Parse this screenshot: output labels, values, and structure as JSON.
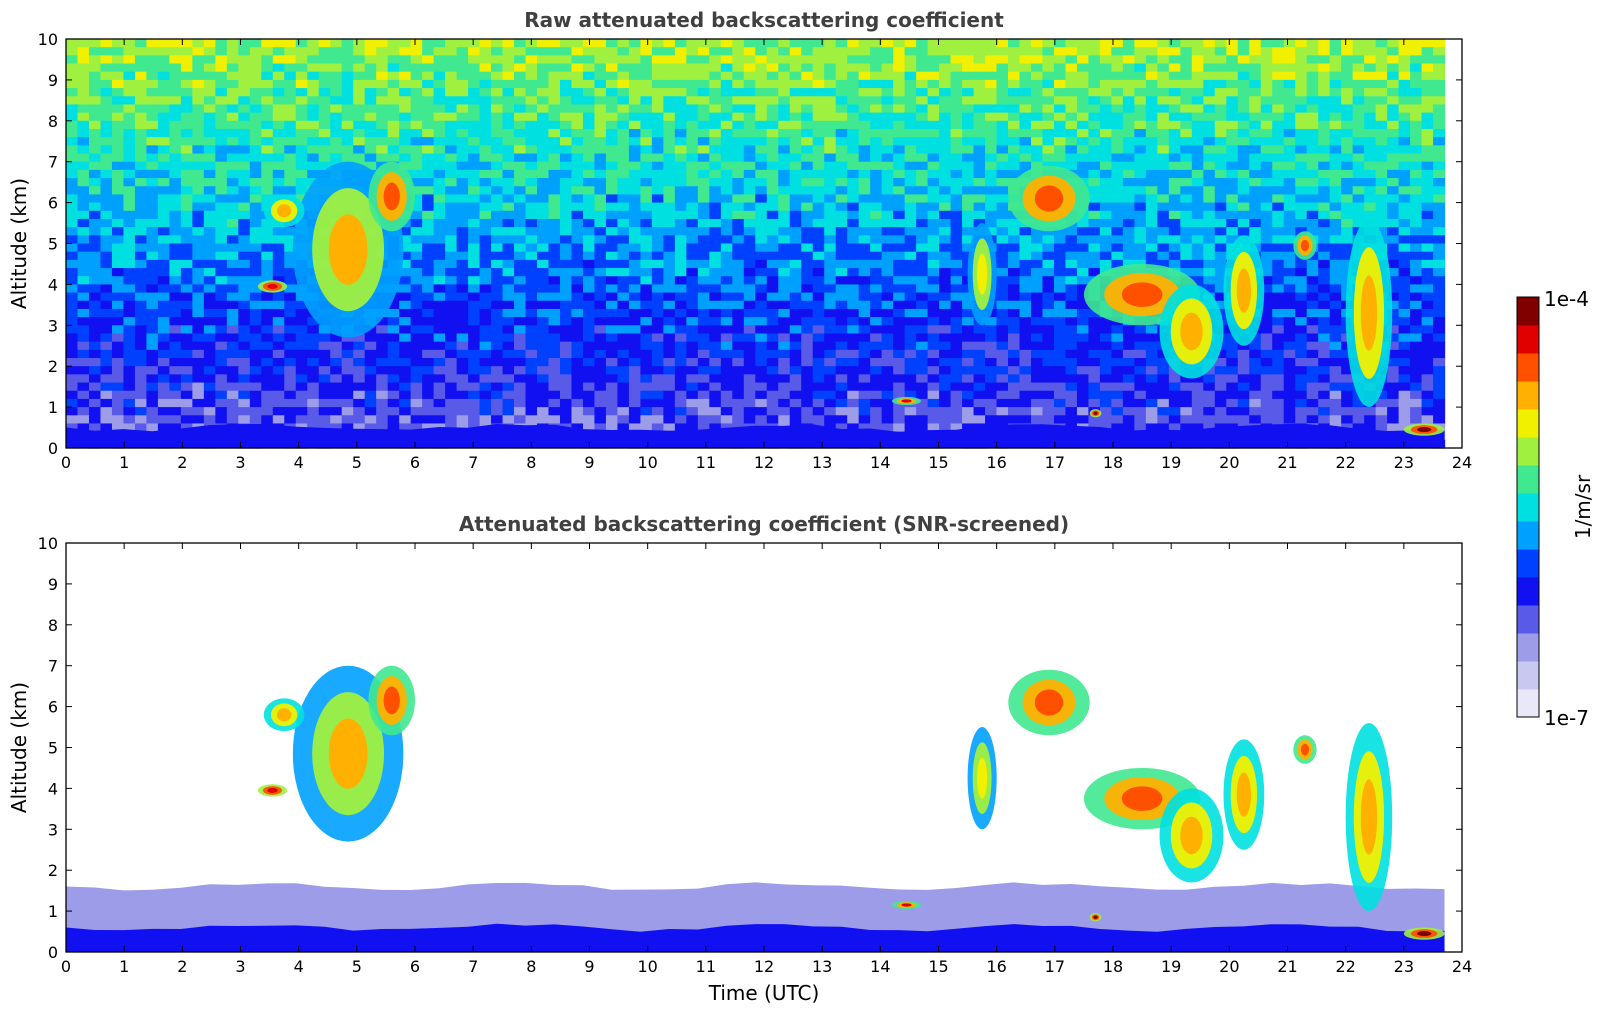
{
  "colormap": [
    "#e8e8f8",
    "#c8c8f0",
    "#9c9ce8",
    "#5a5ae8",
    "#1010f0",
    "#0040ff",
    "#00a0ff",
    "#00e0e0",
    "#40e890",
    "#a0f040",
    "#f0f000",
    "#ffb000",
    "#ff5000",
    "#e00000",
    "#800000"
  ],
  "colorbar": {
    "label": "1/m/sr",
    "max_label": "1e-4",
    "min_label": "1e-7"
  },
  "chart_data": [
    {
      "type": "heatmap",
      "title": "Raw attenuated backscattering coefficient",
      "xlabel": "",
      "ylabel": "Altitude (km)",
      "xlim": [
        0,
        24
      ],
      "ylim": [
        0,
        10
      ],
      "x_ticks": [
        "0",
        "1",
        "2",
        "3",
        "4",
        "5",
        "6",
        "7",
        "8",
        "9",
        "10",
        "11",
        "12",
        "13",
        "14",
        "15",
        "16",
        "17",
        "18",
        "19",
        "20",
        "21",
        "22",
        "23",
        "24"
      ],
      "y_ticks": [
        "0",
        "1",
        "2",
        "3",
        "4",
        "5",
        "6",
        "7",
        "8",
        "9",
        "10"
      ],
      "data_end_time": 23.7,
      "color_scale": "log10 1e-7 to 1e-4",
      "features": [
        {
          "kind": "boundary-layer",
          "time": [
            0,
            23.7
          ],
          "top_altitude": 0.5,
          "level": 0.25
        },
        {
          "kind": "cloud",
          "time": [
            3.9,
            5.8
          ],
          "altitude": [
            2.7,
            7.0
          ],
          "level": 0.75
        },
        {
          "kind": "cloud",
          "time": [
            5.2,
            6.0
          ],
          "altitude": [
            5.3,
            7.0
          ],
          "level": 0.88
        },
        {
          "kind": "cloud",
          "time": [
            3.3,
            3.8
          ],
          "altitude": [
            3.8,
            4.1
          ],
          "level": 0.95
        },
        {
          "kind": "cloud",
          "time": [
            3.4,
            4.1
          ],
          "altitude": [
            5.4,
            6.2
          ],
          "level": 0.8
        },
        {
          "kind": "cloud",
          "time": [
            15.5,
            16.0
          ],
          "altitude": [
            3.0,
            5.5
          ],
          "level": 0.72
        },
        {
          "kind": "cloud",
          "time": [
            16.2,
            17.6
          ],
          "altitude": [
            5.3,
            6.9
          ],
          "level": 0.85
        },
        {
          "kind": "cloud",
          "time": [
            17.5,
            19.5
          ],
          "altitude": [
            3.0,
            4.5
          ],
          "level": 0.85
        },
        {
          "kind": "cloud",
          "time": [
            18.8,
            19.9
          ],
          "altitude": [
            1.7,
            4.0
          ],
          "level": 0.8
        },
        {
          "kind": "cloud",
          "time": [
            19.9,
            20.6
          ],
          "altitude": [
            2.5,
            5.2
          ],
          "level": 0.78
        },
        {
          "kind": "cloud",
          "time": [
            21.1,
            21.5
          ],
          "altitude": [
            4.6,
            5.3
          ],
          "level": 0.85
        },
        {
          "kind": "cloud",
          "time": [
            22.0,
            22.8
          ],
          "altitude": [
            1.0,
            5.6
          ],
          "level": 0.8
        },
        {
          "kind": "cloud",
          "time": [
            23.0,
            23.7
          ],
          "altitude": [
            0.3,
            0.6
          ],
          "level": 0.97
        },
        {
          "kind": "cloud",
          "time": [
            14.2,
            14.7
          ],
          "altitude": [
            1.05,
            1.25
          ],
          "level": 0.9
        },
        {
          "kind": "cloud",
          "time": [
            17.6,
            17.8
          ],
          "altitude": [
            0.75,
            0.95
          ],
          "level": 0.97
        }
      ]
    },
    {
      "type": "heatmap",
      "title": "Attenuated backscattering coefficient (SNR-screened)",
      "xlabel": "Time (UTC)",
      "ylabel": "Altitude (km)",
      "xlim": [
        0,
        24
      ],
      "ylim": [
        0,
        10
      ],
      "x_ticks": [
        "0",
        "1",
        "2",
        "3",
        "4",
        "5",
        "6",
        "7",
        "8",
        "9",
        "10",
        "11",
        "12",
        "13",
        "14",
        "15",
        "16",
        "17",
        "18",
        "19",
        "20",
        "21",
        "22",
        "23",
        "24"
      ],
      "y_ticks": [
        "0",
        "1",
        "2",
        "3",
        "4",
        "5",
        "6",
        "7",
        "8",
        "9",
        "10"
      ],
      "data_end_time": 23.7,
      "color_scale": "log10 1e-7 to 1e-4",
      "features": [
        {
          "kind": "boundary-layer",
          "time": [
            0,
            23.7
          ],
          "top_altitude": 1.6,
          "level": 0.15
        },
        {
          "kind": "boundary-layer",
          "time": [
            0,
            23.7
          ],
          "top_altitude": 0.6,
          "level": 0.28
        },
        {
          "kind": "cloud",
          "time": [
            3.9,
            5.8
          ],
          "altitude": [
            2.7,
            7.0
          ],
          "level": 0.75
        },
        {
          "kind": "cloud",
          "time": [
            5.2,
            6.0
          ],
          "altitude": [
            5.3,
            7.0
          ],
          "level": 0.88
        },
        {
          "kind": "cloud",
          "time": [
            3.3,
            3.8
          ],
          "altitude": [
            3.8,
            4.1
          ],
          "level": 0.95
        },
        {
          "kind": "cloud",
          "time": [
            3.4,
            4.1
          ],
          "altitude": [
            5.4,
            6.2
          ],
          "level": 0.8
        },
        {
          "kind": "cloud",
          "time": [
            15.5,
            16.0
          ],
          "altitude": [
            3.0,
            5.5
          ],
          "level": 0.72
        },
        {
          "kind": "cloud",
          "time": [
            16.2,
            17.6
          ],
          "altitude": [
            5.3,
            6.9
          ],
          "level": 0.85
        },
        {
          "kind": "cloud",
          "time": [
            17.5,
            19.5
          ],
          "altitude": [
            3.0,
            4.5
          ],
          "level": 0.85
        },
        {
          "kind": "cloud",
          "time": [
            18.8,
            19.9
          ],
          "altitude": [
            1.7,
            4.0
          ],
          "level": 0.8
        },
        {
          "kind": "cloud",
          "time": [
            19.9,
            20.6
          ],
          "altitude": [
            2.5,
            5.2
          ],
          "level": 0.78
        },
        {
          "kind": "cloud",
          "time": [
            21.1,
            21.5
          ],
          "altitude": [
            4.6,
            5.3
          ],
          "level": 0.85
        },
        {
          "kind": "cloud",
          "time": [
            22.0,
            22.8
          ],
          "altitude": [
            1.0,
            5.6
          ],
          "level": 0.8
        },
        {
          "kind": "cloud",
          "time": [
            23.0,
            23.7
          ],
          "altitude": [
            0.3,
            0.6
          ],
          "level": 0.97
        },
        {
          "kind": "cloud",
          "time": [
            14.2,
            14.7
          ],
          "altitude": [
            1.05,
            1.25
          ],
          "level": 0.9
        },
        {
          "kind": "cloud",
          "time": [
            17.6,
            17.8
          ],
          "altitude": [
            0.75,
            0.95
          ],
          "level": 0.97
        }
      ]
    }
  ]
}
